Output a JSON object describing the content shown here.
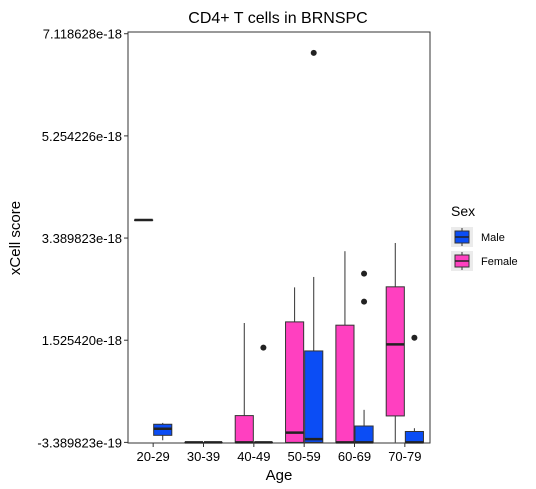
{
  "chart_data": {
    "type": "boxplot",
    "title": "CD4+ T cells in BRNSPC",
    "xlabel": "Age",
    "ylabel": "xCell score",
    "categories": [
      "20-29",
      "30-39",
      "40-49",
      "50-59",
      "60-69",
      "70-79"
    ],
    "y_ticks": [
      -3.389823e-19,
      1.52542e-18,
      3.389823e-18,
      5.254226e-18,
      7.118628e-18
    ],
    "y_tick_labels": [
      "-3.389823e-19",
      "1.525420e-18",
      "3.389823e-18",
      "5.254226e-18",
      "7.118628e-18"
    ],
    "ylim": [
      -3.5e-19,
      7.15e-18
    ],
    "grid": false,
    "legend": {
      "title": "Sex",
      "position": "right",
      "entries": [
        {
          "label": "Male",
          "color": "#0b4df5"
        },
        {
          "label": "Female",
          "color": "#ff40c0"
        }
      ]
    },
    "series": [
      {
        "name": "Female",
        "color": "#ff40c0",
        "boxes": [
          {
            "category": "20-29",
            "min": 3.72e-18,
            "q1": 3.72e-18,
            "median": 3.72e-18,
            "q3": 3.72e-18,
            "max": 3.72e-18,
            "outliers": []
          },
          {
            "category": "30-39",
            "min": -3.389823e-19,
            "q1": -3.389823e-19,
            "median": -3.389823e-19,
            "q3": -3.389823e-19,
            "max": -3.389823e-19,
            "outliers": []
          },
          {
            "category": "40-49",
            "min": -3.389823e-19,
            "q1": -3.389823e-19,
            "median": -3.389823e-19,
            "q3": 1.5e-19,
            "max": 1.84e-18,
            "outliers": []
          },
          {
            "category": "50-59",
            "min": -3.389823e-19,
            "q1": -3.389823e-19,
            "median": -1.6e-19,
            "q3": 1.86e-18,
            "max": 2.49e-18,
            "outliers": []
          },
          {
            "category": "60-69",
            "min": -3.389823e-19,
            "q1": -3.389823e-19,
            "median": -3.389823e-19,
            "q3": 1.8e-18,
            "max": 3.15e-18,
            "outliers": []
          },
          {
            "category": "70-79",
            "min": -3.389823e-19,
            "q1": 1.44e-19,
            "median": 1.45e-18,
            "q3": 2.5e-18,
            "max": 3.3e-18,
            "outliers": []
          }
        ]
      },
      {
        "name": "Male",
        "color": "#0b4df5",
        "boxes": [
          {
            "category": "20-29",
            "min": -3e-19,
            "q1": -2.1e-19,
            "median": -9e-20,
            "q3": -8e-21,
            "max": 1.7e-20,
            "outliers": []
          },
          {
            "category": "30-39",
            "min": -3.389823e-19,
            "q1": -3.389823e-19,
            "median": -3.389823e-19,
            "q3": -3.389823e-19,
            "max": -3.389823e-19,
            "outliers": []
          },
          {
            "category": "40-49",
            "min": -3.389823e-19,
            "q1": -3.389823e-19,
            "median": -3.389823e-19,
            "q3": -3.389823e-19,
            "max": -3.389823e-19,
            "outliers": [
              1.39e-18
            ]
          },
          {
            "category": "50-59",
            "min": -3.389823e-19,
            "q1": -3.389823e-19,
            "median": -2.8e-19,
            "q3": 1.33e-18,
            "max": 2.68e-18,
            "outliers": [
              6.77e-18
            ]
          },
          {
            "category": "60-69",
            "min": -3.389823e-19,
            "q1": -3.389823e-19,
            "median": -3.389823e-19,
            "q3": -4e-20,
            "max": 2.55e-19,
            "outliers": [
              2.23e-18,
              2.74e-18
            ]
          },
          {
            "category": "70-79",
            "min": -3.389823e-19,
            "q1": -3.389823e-19,
            "median": -3.389823e-19,
            "q3": -1.4e-19,
            "max": -8e-20,
            "outliers": [
              1.57e-18
            ]
          }
        ]
      }
    ]
  }
}
